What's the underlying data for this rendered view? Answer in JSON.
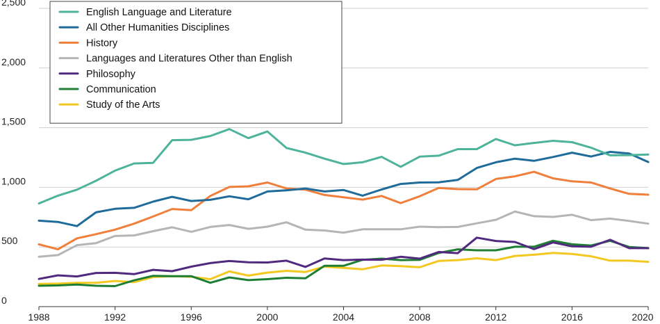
{
  "chart_data": {
    "type": "line",
    "title": "",
    "xlabel": "",
    "ylabel": "",
    "xlim": [
      1988,
      2020
    ],
    "ylim": [
      0,
      2500
    ],
    "grid": "horizontal",
    "legend_position": "top-left",
    "x_ticks": [
      {
        "value": 1988,
        "label": "1988"
      },
      {
        "value": 1992,
        "label": "1992"
      },
      {
        "value": 1996,
        "label": "1996"
      },
      {
        "value": 2000,
        "label": "2000"
      },
      {
        "value": 2004,
        "label": "2004"
      },
      {
        "value": 2008,
        "label": "2008"
      },
      {
        "value": 2012,
        "label": "2012"
      },
      {
        "value": 2016,
        "label": "2016"
      },
      {
        "value": 2020,
        "label": "2020"
      }
    ],
    "y_ticks": [
      {
        "value": 0,
        "label": "0"
      },
      {
        "value": 500,
        "label": "500"
      },
      {
        "value": 1000,
        "label": "1,000"
      },
      {
        "value": 1500,
        "label": "1,500"
      },
      {
        "value": 2000,
        "label": "2,000"
      },
      {
        "value": 2500,
        "label": "2,500"
      }
    ],
    "x": [
      1988,
      1989,
      1990,
      1991,
      1992,
      1993,
      1994,
      1995,
      1996,
      1997,
      1998,
      1999,
      2000,
      2001,
      2002,
      2003,
      2004,
      2005,
      2006,
      2007,
      2008,
      2009,
      2010,
      2011,
      2012,
      2013,
      2014,
      2015,
      2016,
      2017,
      2018,
      2019,
      2020
    ],
    "series": [
      {
        "name": "English Language and Literature",
        "color": "#4db39a",
        "values": [
          865,
          930,
          980,
          1055,
          1140,
          1200,
          1205,
          1395,
          1398,
          1430,
          1488,
          1412,
          1468,
          1330,
          1290,
          1240,
          1195,
          1210,
          1255,
          1172,
          1257,
          1265,
          1320,
          1320,
          1405,
          1352,
          1372,
          1390,
          1378,
          1332,
          1268,
          1270,
          1275
        ]
      },
      {
        "name": "All Other Humanities Disciplines",
        "color": "#1f6b9a",
        "values": [
          720,
          710,
          675,
          790,
          820,
          828,
          880,
          920,
          885,
          895,
          925,
          900,
          965,
          975,
          990,
          965,
          977,
          930,
          982,
          1028,
          1040,
          1042,
          1062,
          1162,
          1210,
          1240,
          1222,
          1254,
          1290,
          1258,
          1297,
          1283,
          1212
        ]
      },
      {
        "name": "History",
        "color": "#ef7f3b",
        "values": [
          522,
          480,
          572,
          607,
          645,
          695,
          755,
          818,
          808,
          928,
          1003,
          1008,
          1040,
          990,
          980,
          936,
          916,
          897,
          928,
          868,
          925,
          995,
          985,
          983,
          1070,
          1092,
          1130,
          1075,
          1050,
          1040,
          990,
          945,
          938
        ]
      },
      {
        "name": "Languages and Literatures Other than English",
        "color": "#b5b5b5",
        "values": [
          418,
          432,
          515,
          532,
          592,
          597,
          632,
          665,
          627,
          668,
          684,
          652,
          670,
          707,
          645,
          638,
          620,
          648,
          648,
          648,
          670,
          666,
          668,
          698,
          728,
          797,
          758,
          752,
          770,
          725,
          738,
          718,
          695
        ]
      },
      {
        "name": "Philosophy",
        "color": "#512a7f",
        "values": [
          232,
          262,
          253,
          282,
          283,
          272,
          308,
          297,
          335,
          365,
          382,
          372,
          370,
          385,
          333,
          404,
          390,
          394,
          393,
          418,
          402,
          458,
          448,
          578,
          550,
          542,
          482,
          538,
          505,
          502,
          560,
          490,
          490
        ]
      },
      {
        "name": "Communication",
        "color": "#1e7f34",
        "values": [
          175,
          178,
          185,
          175,
          172,
          220,
          258,
          255,
          255,
          200,
          245,
          222,
          230,
          242,
          238,
          342,
          342,
          392,
          402,
          390,
          392,
          450,
          480,
          472,
          472,
          502,
          502,
          552,
          522,
          512,
          552,
          500,
          490
        ]
      },
      {
        "name": "Study of the Arts",
        "color": "#f3c820",
        "values": [
          190,
          193,
          200,
          200,
          215,
          205,
          248,
          255,
          250,
          230,
          295,
          260,
          285,
          300,
          290,
          335,
          325,
          313,
          345,
          340,
          330,
          383,
          390,
          405,
          390,
          425,
          435,
          450,
          442,
          422,
          385,
          385,
          375
        ]
      }
    ]
  }
}
